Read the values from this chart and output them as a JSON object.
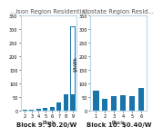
{
  "left_title": "...ison Region Residential",
  "right_title": "Upstate Region Resid...",
  "left_xlabel": "Block",
  "right_xlabel": "Block",
  "right_ylabel": "$/kWh",
  "left_blocks": [
    2,
    3,
    4,
    5,
    6,
    7,
    8,
    9
  ],
  "left_values": [
    4,
    5,
    7,
    9,
    14,
    30,
    60,
    310
  ],
  "left_bar_color": "#1874aa",
  "right_blocks": [
    1,
    2,
    3,
    4,
    5,
    6
  ],
  "right_values": [
    75,
    42,
    55,
    58,
    52,
    82
  ],
  "right_bar_color": "#1874aa",
  "left_ylim": [
    0,
    350
  ],
  "right_ylim": [
    0,
    350
  ],
  "left_yticks": [
    0,
    50,
    100,
    150,
    200,
    250,
    300,
    350
  ],
  "right_yticks": [
    0,
    50,
    100,
    150,
    200,
    250,
    300,
    350
  ],
  "left_caption": "Block 9: $0.20/W",
  "right_caption": "Block 10: $0.40/W",
  "background": "#ffffff",
  "panel_bg": "#ffffff",
  "panel_border_color": "#b8d8ea",
  "caption_fontsize": 5.0,
  "title_fontsize": 4.8,
  "axis_label_fontsize": 3.8,
  "tick_fontsize": 3.5
}
